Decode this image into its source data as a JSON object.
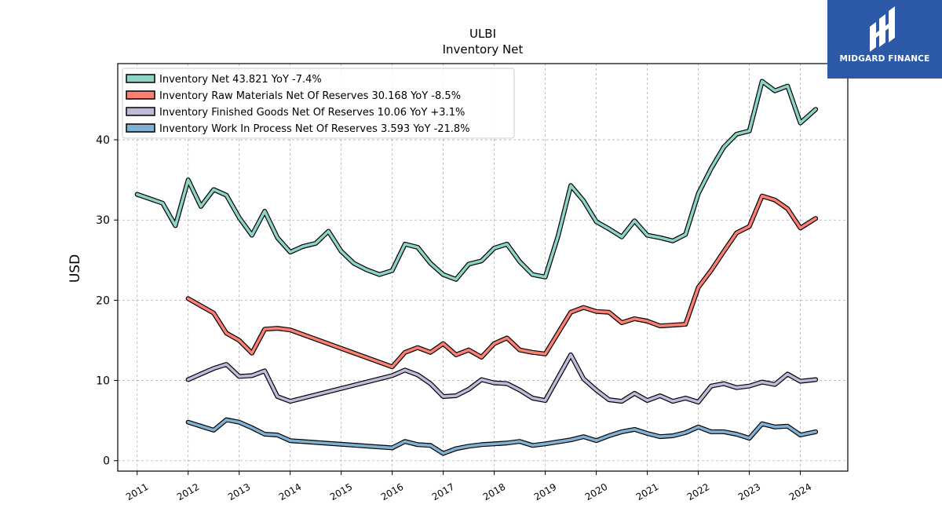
{
  "chart_data": {
    "type": "line",
    "title": "ULBI",
    "subtitle": "Inventory Net",
    "xlabel": "",
    "ylabel": "USD",
    "xlim": [
      2010.62,
      2024.93
    ],
    "ylim": [
      -1.3,
      49.5
    ],
    "grid": true,
    "legend_position": "top-left",
    "x_ticks": [
      2011,
      2012,
      2013,
      2014,
      2015,
      2016,
      2017,
      2018,
      2019,
      2020,
      2021,
      2022,
      2023,
      2024
    ],
    "x_tick_labels": [
      "2011",
      "2012",
      "2013",
      "2014",
      "2015",
      "2016",
      "2017",
      "2018",
      "2019",
      "2020",
      "2021",
      "2022",
      "2023",
      "2024"
    ],
    "y_ticks": [
      0,
      10,
      20,
      30,
      40
    ],
    "y_tick_labels": [
      "0",
      "10",
      "20",
      "30",
      "40"
    ],
    "series": [
      {
        "name": "Inventory Net  43.821 YoY -7.4%",
        "color": "#8dd3c7",
        "points": [
          [
            2011.0,
            33.2
          ],
          [
            2011.5,
            32.1
          ],
          [
            2011.75,
            29.3
          ],
          [
            2012.0,
            35.0
          ],
          [
            2012.25,
            31.7
          ],
          [
            2012.5,
            33.8
          ],
          [
            2012.75,
            33.1
          ],
          [
            2013.0,
            30.3
          ],
          [
            2013.25,
            28.1
          ],
          [
            2013.5,
            31.1
          ],
          [
            2013.75,
            27.8
          ],
          [
            2014.0,
            26.0
          ],
          [
            2014.25,
            26.7
          ],
          [
            2014.5,
            27.1
          ],
          [
            2014.75,
            28.6
          ],
          [
            2015.0,
            26.1
          ],
          [
            2015.25,
            24.6
          ],
          [
            2015.5,
            23.8
          ],
          [
            2015.75,
            23.2
          ],
          [
            2016.0,
            23.7
          ],
          [
            2016.25,
            27.0
          ],
          [
            2016.5,
            26.6
          ],
          [
            2016.75,
            24.6
          ],
          [
            2017.0,
            23.2
          ],
          [
            2017.25,
            22.6
          ],
          [
            2017.5,
            24.5
          ],
          [
            2017.75,
            24.9
          ],
          [
            2018.0,
            26.5
          ],
          [
            2018.25,
            27.0
          ],
          [
            2018.5,
            24.8
          ],
          [
            2018.75,
            23.2
          ],
          [
            2019.0,
            22.9
          ],
          [
            2019.25,
            28.0
          ],
          [
            2019.5,
            34.3
          ],
          [
            2019.75,
            32.4
          ],
          [
            2020.0,
            29.8
          ],
          [
            2020.25,
            28.9
          ],
          [
            2020.5,
            27.9
          ],
          [
            2020.75,
            29.9
          ],
          [
            2021.0,
            28.1
          ],
          [
            2021.25,
            27.8
          ],
          [
            2021.5,
            27.4
          ],
          [
            2021.75,
            28.2
          ],
          [
            2022.0,
            33.3
          ],
          [
            2022.25,
            36.4
          ],
          [
            2022.5,
            39.1
          ],
          [
            2022.75,
            40.7
          ],
          [
            2023.0,
            41.1
          ],
          [
            2023.25,
            47.3
          ],
          [
            2023.5,
            46.1
          ],
          [
            2023.75,
            46.7
          ],
          [
            2024.0,
            42.1
          ],
          [
            2024.3,
            43.8
          ]
        ]
      },
      {
        "name": "Inventory Raw Materials Net Of Reserves  30.168 YoY -8.5%",
        "color": "#fb8072",
        "points": [
          [
            2012.0,
            20.2
          ],
          [
            2012.5,
            18.4
          ],
          [
            2012.75,
            15.9
          ],
          [
            2013.0,
            15.0
          ],
          [
            2013.25,
            13.4
          ],
          [
            2013.5,
            16.4
          ],
          [
            2013.75,
            16.5
          ],
          [
            2014.0,
            16.3
          ],
          [
            2016.0,
            11.7
          ],
          [
            2016.25,
            13.5
          ],
          [
            2016.5,
            14.1
          ],
          [
            2016.75,
            13.5
          ],
          [
            2017.0,
            14.6
          ],
          [
            2017.25,
            13.2
          ],
          [
            2017.5,
            13.8
          ],
          [
            2017.75,
            12.9
          ],
          [
            2018.0,
            14.6
          ],
          [
            2018.25,
            15.3
          ],
          [
            2018.5,
            13.8
          ],
          [
            2018.75,
            13.5
          ],
          [
            2019.0,
            13.3
          ],
          [
            2019.5,
            18.5
          ],
          [
            2019.75,
            19.1
          ],
          [
            2020.0,
            18.6
          ],
          [
            2020.25,
            18.5
          ],
          [
            2020.5,
            17.2
          ],
          [
            2020.75,
            17.7
          ],
          [
            2021.0,
            17.4
          ],
          [
            2021.25,
            16.8
          ],
          [
            2021.5,
            16.9
          ],
          [
            2021.75,
            17.0
          ],
          [
            2022.0,
            21.6
          ],
          [
            2022.25,
            23.7
          ],
          [
            2022.5,
            26.1
          ],
          [
            2022.75,
            28.4
          ],
          [
            2023.0,
            29.2
          ],
          [
            2023.25,
            33.0
          ],
          [
            2023.5,
            32.5
          ],
          [
            2023.75,
            31.4
          ],
          [
            2024.0,
            29.0
          ],
          [
            2024.3,
            30.2
          ]
        ]
      },
      {
        "name": "Inventory Finished Goods Net Of Reserves  10.06 YoY +3.1%",
        "color": "#bebada",
        "points": [
          [
            2012.0,
            10.1
          ],
          [
            2012.5,
            11.5
          ],
          [
            2012.75,
            12.0
          ],
          [
            2013.0,
            10.5
          ],
          [
            2013.25,
            10.6
          ],
          [
            2013.5,
            11.2
          ],
          [
            2013.75,
            8.0
          ],
          [
            2014.0,
            7.4
          ],
          [
            2016.0,
            10.6
          ],
          [
            2016.25,
            11.3
          ],
          [
            2016.5,
            10.7
          ],
          [
            2016.75,
            9.6
          ],
          [
            2017.0,
            8.0
          ],
          [
            2017.25,
            8.1
          ],
          [
            2017.5,
            8.9
          ],
          [
            2017.75,
            10.1
          ],
          [
            2018.0,
            9.7
          ],
          [
            2018.25,
            9.6
          ],
          [
            2018.5,
            8.8
          ],
          [
            2018.75,
            7.8
          ],
          [
            2019.0,
            7.5
          ],
          [
            2019.5,
            13.2
          ],
          [
            2019.75,
            10.2
          ],
          [
            2020.0,
            8.8
          ],
          [
            2020.25,
            7.6
          ],
          [
            2020.5,
            7.4
          ],
          [
            2020.75,
            8.4
          ],
          [
            2021.0,
            7.5
          ],
          [
            2021.25,
            8.1
          ],
          [
            2021.5,
            7.4
          ],
          [
            2021.75,
            7.8
          ],
          [
            2022.0,
            7.3
          ],
          [
            2022.25,
            9.3
          ],
          [
            2022.5,
            9.6
          ],
          [
            2022.75,
            9.1
          ],
          [
            2023.0,
            9.3
          ],
          [
            2023.25,
            9.8
          ],
          [
            2023.5,
            9.5
          ],
          [
            2023.75,
            10.8
          ],
          [
            2024.0,
            9.9
          ],
          [
            2024.3,
            10.1
          ]
        ]
      },
      {
        "name": "Inventory Work In Process Net Of Reserves  3.593 YoY -21.8%",
        "color": "#80b1d3",
        "points": [
          [
            2012.0,
            4.8
          ],
          [
            2012.5,
            3.8
          ],
          [
            2012.75,
            5.1
          ],
          [
            2013.0,
            4.8
          ],
          [
            2013.25,
            4.1
          ],
          [
            2013.5,
            3.3
          ],
          [
            2013.75,
            3.2
          ],
          [
            2014.0,
            2.5
          ],
          [
            2016.0,
            1.6
          ],
          [
            2016.25,
            2.4
          ],
          [
            2016.5,
            2.0
          ],
          [
            2016.75,
            1.9
          ],
          [
            2017.0,
            0.9
          ],
          [
            2017.25,
            1.5
          ],
          [
            2017.5,
            1.8
          ],
          [
            2017.75,
            2.0
          ],
          [
            2018.0,
            2.1
          ],
          [
            2018.25,
            2.2
          ],
          [
            2018.5,
            2.4
          ],
          [
            2018.75,
            1.9
          ],
          [
            2019.0,
            2.1
          ],
          [
            2019.5,
            2.6
          ],
          [
            2019.75,
            3.0
          ],
          [
            2020.0,
            2.5
          ],
          [
            2020.25,
            3.1
          ],
          [
            2020.5,
            3.6
          ],
          [
            2020.75,
            3.9
          ],
          [
            2021.0,
            3.4
          ],
          [
            2021.25,
            3.0
          ],
          [
            2021.5,
            3.1
          ],
          [
            2021.75,
            3.5
          ],
          [
            2022.0,
            4.2
          ],
          [
            2022.25,
            3.6
          ],
          [
            2022.5,
            3.6
          ],
          [
            2022.75,
            3.3
          ],
          [
            2023.0,
            2.8
          ],
          [
            2023.25,
            4.6
          ],
          [
            2023.5,
            4.2
          ],
          [
            2023.75,
            4.3
          ],
          [
            2024.0,
            3.2
          ],
          [
            2024.3,
            3.6
          ]
        ]
      }
    ]
  },
  "branding": {
    "logo_text": "MIDGARD FINANCE",
    "logo_color": "#2c5aa8"
  }
}
